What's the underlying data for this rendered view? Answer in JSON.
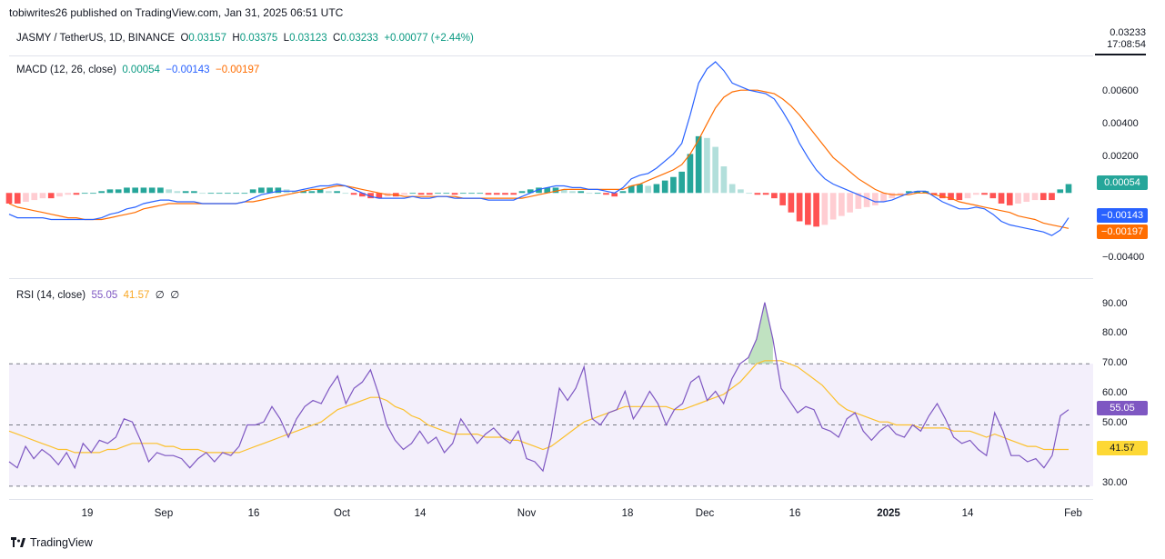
{
  "header": {
    "publisher": "tobiwrites26 published on TradingView.com, Jan 31, 2025 06:51 UTC",
    "symbol": "JASMY / TetherUS, 1D, BINANCE",
    "open_label": "O",
    "open": "0.03157",
    "high_label": "H",
    "high": "0.03375",
    "low_label": "L",
    "low": "0.03123",
    "close_label": "C",
    "close": "0.03233",
    "change": "+0.00077 (+2.44%)",
    "last_price": "0.03233",
    "countdown": "17:08:54"
  },
  "macd": {
    "legend_title": "MACD (12, 26, close)",
    "hist_value": "0.00054",
    "macd_value": "−0.00143",
    "signal_value": "−0.00197",
    "axis_ticks": [
      "0.00600",
      "0.00400",
      "0.00200",
      "−0.00400"
    ],
    "colors": {
      "macd": "#2962ff",
      "signal": "#ff6d00",
      "hist_up_strong": "#26a69a",
      "hist_up_weak": "#b2dfdb",
      "hist_down_strong": "#ff5252",
      "hist_down_weak": "#ffcdd2"
    }
  },
  "rsi": {
    "legend_title": "RSI (14, close)",
    "rsi_value": "55.05",
    "ma_value": "41.57",
    "extra1": "∅",
    "extra2": "∅",
    "axis_ticks": [
      "90.00",
      "80.00",
      "70.00",
      "60.00",
      "50.00",
      "30.00"
    ],
    "colors": {
      "rsi": "#7e57c2",
      "ma": "#fbc02d",
      "band": "#f3effb"
    }
  },
  "x_axis": {
    "labels": [
      "19",
      "Sep",
      "16",
      "Oct",
      "14",
      "Nov",
      "18",
      "Dec",
      "16",
      "2025",
      "14",
      "Feb"
    ]
  },
  "footer": {
    "brand": "TradingView"
  },
  "chart_data": [
    {
      "type": "line",
      "title": "MACD (12, 26, close)",
      "ylim": [
        -0.0045,
        0.0074
      ],
      "series": [
        {
          "name": "MACD",
          "values": [
            -0.0012,
            -0.0014,
            -0.0014,
            -0.0014,
            -0.0014,
            -0.0015,
            -0.0015,
            -0.0015,
            -0.0015,
            -0.0015,
            -0.0015,
            -0.0014,
            -0.0012,
            -0.0011,
            -0.0009,
            -0.0008,
            -0.0006,
            -0.0005,
            -0.0004,
            -0.0004,
            -0.0005,
            -0.0005,
            -0.0005,
            -0.0006,
            -0.0006,
            -0.0006,
            -0.0006,
            -0.0006,
            -0.0005,
            -0.0003,
            -0.0001,
            0.0,
            0.0001,
            0.0001,
            0.0001,
            0.0002,
            0.0003,
            0.0004,
            0.0004,
            0.0005,
            0.0004,
            0.0002,
            0.0,
            -0.0002,
            -0.0003,
            -0.0003,
            -0.0003,
            -0.0003,
            -0.0002,
            -0.0003,
            -0.0003,
            -0.0002,
            -0.0002,
            -0.0003,
            -0.0003,
            -0.0003,
            -0.0003,
            -0.0004,
            -0.0004,
            -0.0004,
            -0.0004,
            -0.0002,
            0.0,
            0.0002,
            0.0003,
            0.0004,
            0.0004,
            0.0003,
            0.0003,
            0.0002,
            0.0002,
            0.0001,
            0.0,
            0.0003,
            0.0008,
            0.001,
            0.0011,
            0.0014,
            0.0018,
            0.0022,
            0.0028,
            0.0044,
            0.0062,
            0.007,
            0.0074,
            0.0069,
            0.0062,
            0.006,
            0.0058,
            0.0057,
            0.0056,
            0.0053,
            0.0046,
            0.0038,
            0.0028,
            0.002,
            0.0013,
            0.0008,
            0.0005,
            0.0003,
            0.0001,
            -0.0001,
            -0.0003,
            -0.0005,
            -0.0005,
            -0.0004,
            -0.0002,
            0.0,
            0.0001,
            0.0001,
            -0.0002,
            -0.0005,
            -0.0007,
            -0.0009,
            -0.0009,
            -0.0008,
            -0.0009,
            -0.0012,
            -0.0016,
            -0.0018,
            -0.0019,
            -0.002,
            -0.0021,
            -0.0022,
            -0.0024,
            -0.0021,
            -0.0014
          ]
        },
        {
          "name": "Signal",
          "values": [
            -0.0006,
            -0.0008,
            -0.0009,
            -0.001,
            -0.0011,
            -0.0012,
            -0.0013,
            -0.0014,
            -0.0014,
            -0.0015,
            -0.0015,
            -0.0015,
            -0.0014,
            -0.0013,
            -0.0012,
            -0.0011,
            -0.0009,
            -0.0008,
            -0.0007,
            -0.0006,
            -0.0006,
            -0.0006,
            -0.0006,
            -0.0006,
            -0.0006,
            -0.0006,
            -0.0006,
            -0.0006,
            -0.0005,
            -0.0005,
            -0.0004,
            -0.0003,
            -0.0002,
            -0.0001,
            0.0,
            0.0001,
            0.0002,
            0.0002,
            0.0003,
            0.0004,
            0.0004,
            0.0003,
            0.0002,
            0.0001,
            0.0,
            -0.0001,
            -0.0001,
            -0.0002,
            -0.0002,
            -0.0002,
            -0.0002,
            -0.0002,
            -0.0002,
            -0.0002,
            -0.0003,
            -0.0003,
            -0.0003,
            -0.0003,
            -0.0003,
            -0.0003,
            -0.0003,
            -0.0003,
            -0.0002,
            -0.0001,
            0.0,
            0.0001,
            0.0002,
            0.0002,
            0.0002,
            0.0002,
            0.0002,
            0.0002,
            0.0002,
            0.0002,
            0.0004,
            0.0005,
            0.0007,
            0.0009,
            0.0011,
            0.0013,
            0.0016,
            0.0022,
            0.003,
            0.0039,
            0.0048,
            0.0054,
            0.0057,
            0.0058,
            0.0058,
            0.0058,
            0.0057,
            0.0056,
            0.0053,
            0.0049,
            0.0044,
            0.0038,
            0.0032,
            0.0026,
            0.002,
            0.0016,
            0.0012,
            0.0008,
            0.0005,
            0.0002,
            0.0,
            -0.0001,
            -0.0001,
            -0.0001,
            0.0,
            0.0,
            -0.0001,
            -0.0002,
            -0.0003,
            -0.0005,
            -0.0006,
            -0.0007,
            -0.0008,
            -0.0009,
            -0.001,
            -0.0011,
            -0.0013,
            -0.0014,
            -0.0015,
            -0.0017,
            -0.0018,
            -0.0019,
            -0.002
          ]
        },
        {
          "name": "Histogram",
          "values": [
            -0.0006,
            -0.0006,
            -0.0005,
            -0.0004,
            -0.0003,
            -0.0003,
            -0.0002,
            -0.0001,
            -0.0001,
            0.0,
            0.0,
            0.0001,
            0.0002,
            0.0002,
            0.0003,
            0.0003,
            0.0003,
            0.0003,
            0.0003,
            0.0002,
            0.0001,
            0.0001,
            0.0001,
            0.0,
            0.0,
            0.0,
            0.0,
            0.0,
            0.0,
            0.0002,
            0.0003,
            0.0003,
            0.0003,
            0.0002,
            0.0001,
            0.0001,
            0.0001,
            0.0002,
            0.0001,
            0.0001,
            0.0,
            -0.0001,
            -0.0002,
            -0.0003,
            -0.0003,
            -0.0002,
            -0.0002,
            -0.0001,
            0.0,
            -0.0001,
            -0.0001,
            0.0,
            0.0,
            -0.0001,
            0.0,
            0.0,
            0.0,
            -0.0001,
            -0.0001,
            -0.0001,
            -0.0001,
            0.0001,
            0.0002,
            0.0003,
            0.0003,
            0.0003,
            0.0002,
            0.0001,
            0.0001,
            0.0,
            0.0,
            -0.0001,
            -0.0002,
            0.0001,
            0.0004,
            0.0005,
            0.0004,
            0.0005,
            0.0007,
            0.0009,
            0.0012,
            0.0022,
            0.0032,
            0.0031,
            0.0026,
            0.0015,
            0.0005,
            0.0002,
            0.0,
            -0.0001,
            -0.0001,
            -0.0003,
            -0.0007,
            -0.0011,
            -0.0016,
            -0.0018,
            -0.0019,
            -0.0018,
            -0.0015,
            -0.0013,
            -0.0011,
            -0.0009,
            -0.0008,
            -0.0007,
            -0.0005,
            -0.0003,
            -0.0001,
            0.0001,
            0.0001,
            0.0001,
            -0.0001,
            -0.0003,
            -0.0004,
            -0.0004,
            -0.0003,
            -0.0001,
            -0.0001,
            -0.0003,
            -0.0006,
            -0.0007,
            -0.0006,
            -0.0005,
            -0.0004,
            -0.0004,
            -0.0004,
            0.0002,
            0.0005
          ]
        }
      ]
    },
    {
      "type": "line",
      "title": "RSI (14, close)",
      "ylim": [
        27,
        95
      ],
      "bands": [
        30,
        50,
        70
      ],
      "series": [
        {
          "name": "RSI",
          "values": [
            38,
            36,
            43,
            39,
            42,
            40,
            37,
            41,
            36,
            44,
            41,
            45,
            44,
            46,
            52,
            51,
            45,
            38,
            41,
            40,
            40,
            39,
            36,
            39,
            41,
            38,
            41,
            40,
            43,
            50,
            50,
            51,
            56,
            52,
            46,
            52,
            56,
            58,
            57,
            62,
            66,
            57,
            62,
            64,
            68,
            60,
            50,
            45,
            42,
            44,
            48,
            44,
            46,
            41,
            44,
            52,
            48,
            44,
            47,
            49,
            46,
            44,
            48,
            39,
            38,
            35,
            46,
            62,
            58,
            62,
            69,
            52,
            50,
            54,
            55,
            61,
            52,
            56,
            61,
            57,
            50,
            55,
            57,
            64,
            66,
            58,
            61,
            57,
            65,
            70,
            72,
            78,
            90,
            78,
            62,
            58,
            54,
            56,
            55,
            49,
            48,
            46,
            52,
            54,
            48,
            45,
            48,
            50,
            47,
            46,
            50,
            48,
            53,
            57,
            52,
            46,
            44,
            45,
            42,
            40,
            54,
            48,
            40,
            40,
            38,
            39,
            36,
            40,
            53,
            55
          ]
        },
        {
          "name": "RSI-based MA",
          "values": [
            48,
            47,
            46,
            45,
            44,
            43,
            42,
            42,
            41,
            41,
            41,
            41,
            42,
            42,
            43,
            44,
            44,
            44,
            44,
            43,
            43,
            42,
            42,
            42,
            41,
            41,
            41,
            41,
            41,
            42,
            43,
            44,
            45,
            46,
            47,
            48,
            49,
            50,
            51,
            53,
            55,
            56,
            57,
            58,
            59,
            59,
            58,
            56,
            55,
            53,
            52,
            50,
            49,
            48,
            47,
            47,
            47,
            47,
            46,
            46,
            46,
            45,
            45,
            44,
            43,
            42,
            43,
            45,
            47,
            49,
            51,
            52,
            53,
            54,
            55,
            56,
            56,
            56,
            56,
            56,
            56,
            55,
            55,
            56,
            57,
            58,
            59,
            60,
            62,
            64,
            67,
            70,
            71,
            71,
            71,
            70,
            69,
            67,
            65,
            63,
            60,
            57,
            55,
            54,
            53,
            52,
            51,
            51,
            50,
            50,
            50,
            49,
            49,
            49,
            49,
            48,
            48,
            48,
            47,
            46,
            47,
            46,
            45,
            44,
            43,
            43,
            42,
            42,
            42,
            42
          ]
        }
      ]
    }
  ]
}
